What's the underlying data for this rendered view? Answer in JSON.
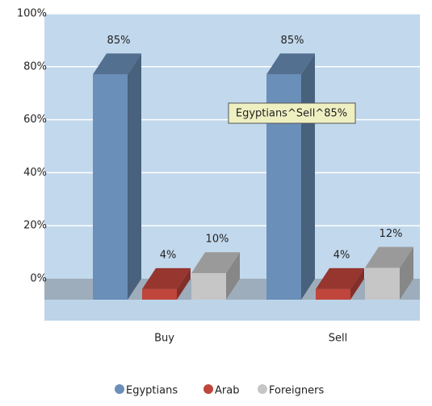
{
  "chart_data": {
    "type": "bar3d",
    "categories": [
      "Buy",
      "Sell"
    ],
    "series": [
      {
        "name": "Egyptians",
        "color": "#6a8fb8",
        "values": [
          85,
          85
        ],
        "value_labels": [
          "85%",
          "85%"
        ]
      },
      {
        "name": "Arab",
        "color": "#c0453c",
        "values": [
          4,
          4
        ],
        "value_labels": [
          "4%",
          "4%"
        ]
      },
      {
        "name": "Foreigners",
        "color": "#c6c6c6",
        "values": [
          10,
          12
        ],
        "value_labels": [
          "10%",
          "12%"
        ]
      }
    ],
    "ylim": [
      0,
      100
    ],
    "yticks": [
      {
        "value": 0,
        "label": "0%"
      },
      {
        "value": 20,
        "label": "20%"
      },
      {
        "value": 40,
        "label": "40%"
      },
      {
        "value": 60,
        "label": "60%"
      },
      {
        "value": 80,
        "label": "80%"
      },
      {
        "value": 100,
        "label": "100%"
      }
    ],
    "grid": true,
    "legend": "bottom",
    "tooltip": "Egyptians^Sell^85%"
  }
}
